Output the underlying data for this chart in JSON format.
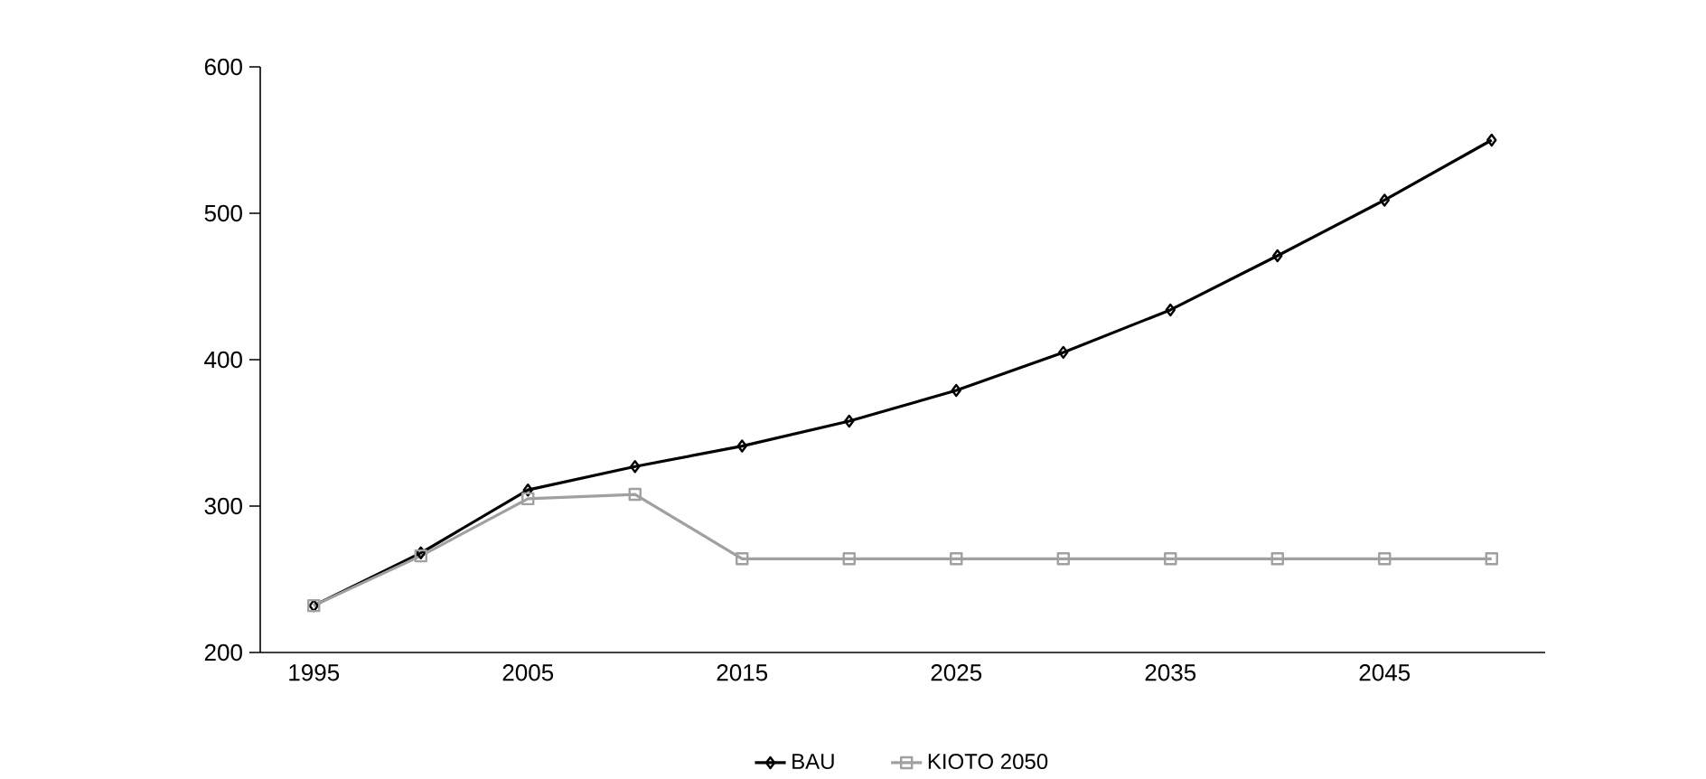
{
  "chart_data": {
    "type": "line",
    "categories": [
      "1995",
      null,
      "2005",
      null,
      "2015",
      null,
      "2025",
      null,
      "2035",
      null,
      "2045",
      null
    ],
    "series": [
      {
        "name": "BAU",
        "color": "#000000",
        "marker": "diamond",
        "values": [
          232,
          268,
          311,
          327,
          341,
          358,
          379,
          405,
          434,
          471,
          509,
          550
        ]
      },
      {
        "name": "KIOTO 2050",
        "color": "#a0a0a0",
        "marker": "square",
        "values": [
          232,
          266,
          305,
          308,
          264,
          264,
          264,
          264,
          264,
          264,
          264,
          264
        ]
      }
    ],
    "ylim": [
      200,
      600
    ],
    "yticks": [
      200,
      300,
      400,
      500,
      600
    ],
    "grid": false,
    "legend": "bottom",
    "line_style": "solid"
  }
}
